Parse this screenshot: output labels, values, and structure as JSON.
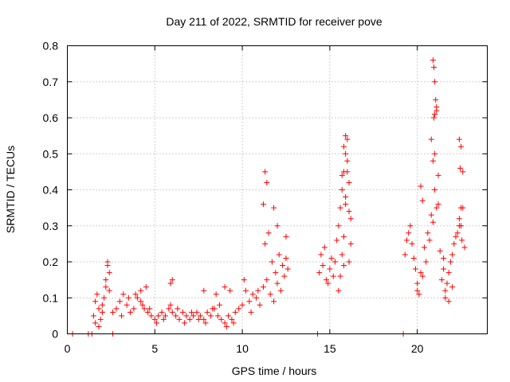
{
  "chart_data": {
    "type": "scatter",
    "title": "Day 211 of 2022, SRMTID for receiver pove",
    "xlabel": "GPS time / hours",
    "ylabel": "SRMTID / TECUs",
    "xlim": [
      0,
      24
    ],
    "ylim": [
      0,
      0.8
    ],
    "x_ticks": [
      0,
      5,
      10,
      15,
      20
    ],
    "y_ticks": [
      0,
      0.1,
      0.2,
      0.3,
      0.4,
      0.5,
      0.6,
      0.7,
      0.8
    ],
    "x_tick_labels": [
      "0",
      "5",
      "10",
      "15",
      "20"
    ],
    "y_tick_labels": [
      "0",
      "0.1",
      "0.2",
      "0.3",
      "0.4",
      "0.5",
      "0.6",
      "0.7",
      "0.8"
    ],
    "grid": true,
    "marker": "+",
    "color": "#ff0000",
    "series": [
      {
        "name": "SRMTID",
        "x": [
          0.3,
          1.2,
          1.4,
          2.6,
          14.3,
          19.2,
          1.5,
          1.6,
          1.7,
          1.8,
          1.9,
          2.0,
          2.1,
          2.2,
          2.3,
          2.3,
          2.4,
          2.4,
          1.6,
          1.8,
          2.0,
          2.2,
          2.6,
          2.8,
          3.0,
          3.2,
          3.4,
          3.6,
          3.8,
          4.0,
          4.2,
          4.4,
          4.6,
          4.8,
          5.0,
          5.2,
          5.4,
          5.6,
          5.8,
          6.0,
          6.2,
          6.4,
          6.6,
          6.8,
          7.0,
          7.2,
          7.4,
          7.6,
          7.8,
          8.0,
          8.2,
          8.4,
          8.6,
          8.8,
          9.0,
          9.2,
          9.4,
          9.6,
          9.8,
          3.1,
          3.5,
          3.9,
          4.3,
          4.7,
          5.1,
          5.5,
          5.9,
          6.3,
          6.7,
          7.1,
          7.5,
          7.9,
          8.3,
          8.7,
          9.1,
          9.5,
          4.2,
          4.5,
          5.9,
          6.0,
          7.8,
          8.5,
          9.0,
          9.3,
          10.0,
          10.2,
          10.4,
          10.6,
          10.8,
          11.0,
          11.2,
          11.4,
          11.6,
          11.8,
          12.0,
          12.2,
          12.4,
          12.6,
          10.1,
          10.5,
          10.9,
          11.3,
          11.5,
          11.7,
          11.9,
          12.1,
          12.3,
          12.5,
          11.3,
          11.4,
          11.2,
          11.8,
          12.0,
          12.5,
          14.4,
          14.5,
          14.6,
          14.7,
          14.8,
          14.9,
          15.0,
          15.1,
          15.2,
          15.3,
          15.4,
          15.5,
          15.6,
          15.7,
          15.8,
          15.9,
          16.0,
          16.1,
          16.2,
          15.5,
          15.6,
          15.7,
          15.8,
          15.9,
          16.0,
          15.8,
          15.9,
          16.0,
          15.9,
          16.1,
          15.7,
          15.8,
          16.2,
          16.1,
          19.3,
          19.5,
          19.7,
          19.9,
          20.1,
          20.3,
          20.5,
          20.7,
          20.9,
          21.1,
          21.3,
          21.5,
          21.7,
          21.9,
          22.1,
          22.3,
          22.5,
          22.7,
          19.4,
          19.6,
          19.8,
          20.0,
          20.2,
          20.4,
          20.6,
          20.8,
          21.0,
          21.2,
          21.4,
          21.6,
          21.8,
          22.0,
          22.2,
          22.4,
          22.6,
          20.9,
          20.95,
          21.0,
          21.05,
          21.1,
          21.0,
          20.95,
          21.1,
          20.8,
          21.0,
          20.9,
          21.2,
          22.4,
          22.5,
          22.45,
          22.6,
          22.5,
          22.4,
          22.55,
          20.2,
          20.3,
          21.5,
          21.6,
          21.8,
          22.0,
          20.0
        ],
        "y": [
          0.0,
          0.0,
          0.0,
          0.0,
          0.0,
          0.0,
          0.05,
          0.09,
          0.11,
          0.07,
          0.04,
          0.06,
          0.1,
          0.13,
          0.19,
          0.2,
          0.17,
          0.12,
          0.03,
          0.02,
          0.08,
          0.15,
          0.06,
          0.07,
          0.09,
          0.11,
          0.08,
          0.06,
          0.07,
          0.1,
          0.09,
          0.07,
          0.06,
          0.05,
          0.04,
          0.05,
          0.06,
          0.05,
          0.07,
          0.06,
          0.05,
          0.04,
          0.06,
          0.05,
          0.04,
          0.05,
          0.06,
          0.05,
          0.04,
          0.06,
          0.05,
          0.07,
          0.05,
          0.04,
          0.03,
          0.05,
          0.04,
          0.06,
          0.07,
          0.05,
          0.1,
          0.11,
          0.08,
          0.07,
          0.03,
          0.04,
          0.08,
          0.07,
          0.03,
          0.06,
          0.04,
          0.03,
          0.07,
          0.08,
          0.02,
          0.03,
          0.12,
          0.13,
          0.14,
          0.15,
          0.12,
          0.11,
          0.13,
          0.12,
          0.08,
          0.12,
          0.09,
          0.11,
          0.1,
          0.08,
          0.13,
          0.15,
          0.11,
          0.09,
          0.14,
          0.12,
          0.16,
          0.18,
          0.15,
          0.06,
          0.12,
          0.25,
          0.28,
          0.2,
          0.17,
          0.22,
          0.19,
          0.21,
          0.45,
          0.42,
          0.36,
          0.35,
          0.3,
          0.27,
          0.17,
          0.22,
          0.19,
          0.24,
          0.15,
          0.14,
          0.18,
          0.21,
          0.16,
          0.2,
          0.26,
          0.3,
          0.35,
          0.4,
          0.45,
          0.5,
          0.48,
          0.42,
          0.32,
          0.12,
          0.16,
          0.22,
          0.27,
          0.38,
          0.45,
          0.52,
          0.55,
          0.54,
          0.36,
          0.34,
          0.44,
          0.19,
          0.25,
          0.2,
          0.22,
          0.28,
          0.25,
          0.18,
          0.11,
          0.16,
          0.2,
          0.26,
          0.31,
          0.35,
          0.23,
          0.18,
          0.14,
          0.2,
          0.25,
          0.28,
          0.3,
          0.24,
          0.26,
          0.3,
          0.21,
          0.14,
          0.17,
          0.24,
          0.28,
          0.33,
          0.4,
          0.36,
          0.15,
          0.12,
          0.17,
          0.22,
          0.27,
          0.32,
          0.35,
          0.76,
          0.74,
          0.7,
          0.65,
          0.63,
          0.61,
          0.6,
          0.62,
          0.54,
          0.5,
          0.48,
          0.44,
          0.54,
          0.52,
          0.46,
          0.45,
          0.35,
          0.3,
          0.26,
          0.41,
          0.37,
          0.21,
          0.1,
          0.09,
          0.13,
          0.12
        ]
      }
    ]
  }
}
